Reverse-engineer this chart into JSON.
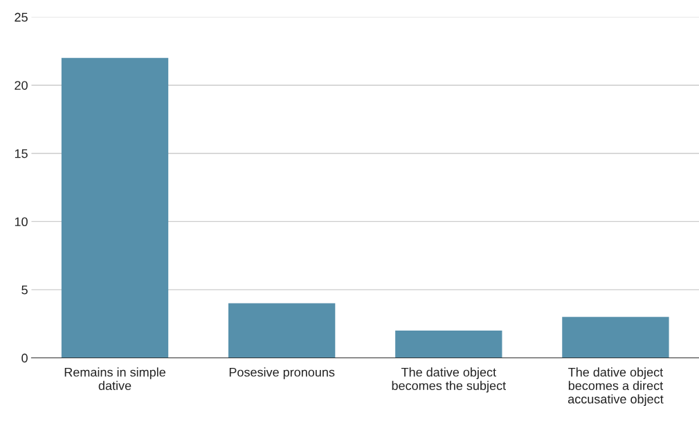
{
  "chart_data": {
    "type": "bar",
    "categories": [
      "Remains in simple dative",
      "Posesive pronouns",
      "The dative object becomes the subject",
      "The dative object becomes a direct accusative object"
    ],
    "values": [
      22,
      4,
      2,
      3
    ],
    "color": "#5690ab",
    "ylim": [
      0,
      25
    ],
    "yticks": [
      0,
      5,
      10,
      15,
      20,
      25
    ],
    "grid": "y",
    "legend": false
  }
}
